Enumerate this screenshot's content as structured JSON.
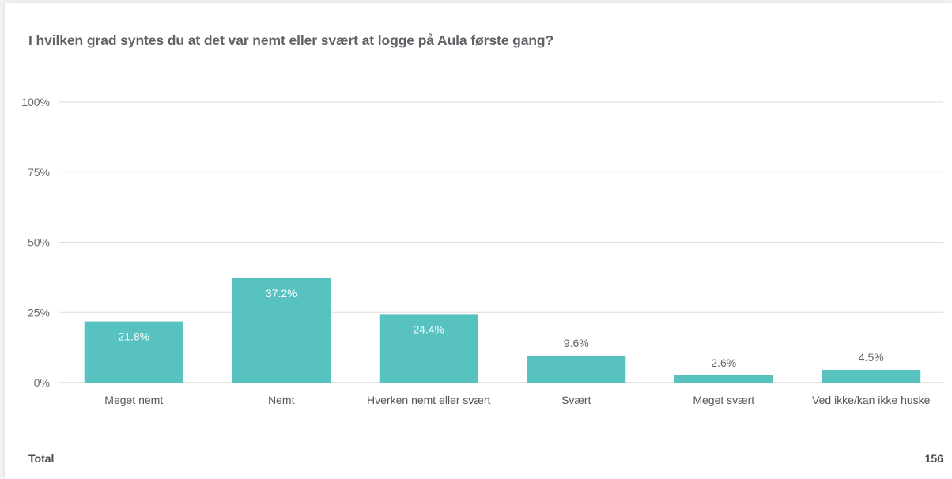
{
  "title": "I hvilken grad syntes du at det var nemt eller svært at logge på Aula første gang?",
  "chart_data": {
    "type": "bar",
    "categories": [
      "Meget nemt",
      "Nemt",
      "Hverken nemt eller svært",
      "Svært",
      "Meget svært",
      "Ved ikke/kan ikke huske"
    ],
    "values": [
      21.8,
      37.2,
      24.4,
      9.6,
      2.6,
      4.5
    ],
    "value_labels": [
      "21.8%",
      "37.2%",
      "24.4%",
      "9.6%",
      "2.6%",
      "4.5%"
    ],
    "y_ticks": [
      0,
      25,
      50,
      75,
      100
    ],
    "y_tick_labels": [
      "0%",
      "25%",
      "50%",
      "75%",
      "100%"
    ],
    "ylim": [
      0,
      100
    ],
    "grid": true,
    "bar_color": "#57c2c0"
  },
  "footer": {
    "label": "Total",
    "value": "156"
  }
}
